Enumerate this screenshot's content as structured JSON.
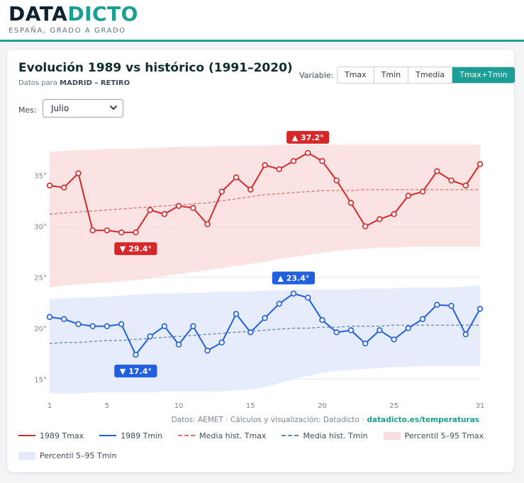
{
  "brand": {
    "name_part1": "DATA",
    "name_part2": "DICTO",
    "tagline": "ESPAÑA, GRADO A GRADO"
  },
  "header": {
    "title": "Evolución 1989 vs histórico (1991–2020)",
    "subtitle_prefix": "Datos para",
    "station": "MADRID – RETIRO"
  },
  "controls": {
    "variable_label": "Variable:",
    "variable_options": [
      "Tmax",
      "Tmin",
      "Tmedia",
      "Tmax+Tmin"
    ],
    "variable_selected": "Tmax+Tmin",
    "month_label": "Mes:",
    "month_value": "Julio"
  },
  "colors": {
    "tmax": "#d62828",
    "tmin": "#1f5fe0",
    "tmax_hist": "#e2706e",
    "tmin_hist": "#5a88b0",
    "tmax_band": "#f9dedd",
    "tmin_band": "#e2e9fa",
    "accent": "#1b9e93"
  },
  "chart_data": {
    "type": "line",
    "x": [
      1,
      2,
      3,
      4,
      5,
      6,
      7,
      8,
      9,
      10,
      11,
      12,
      13,
      14,
      15,
      16,
      17,
      18,
      19,
      20,
      21,
      22,
      23,
      24,
      25,
      26,
      27,
      28,
      29,
      30,
      31
    ],
    "x_ticks": [
      1,
      5,
      10,
      15,
      20,
      25,
      31
    ],
    "y_ticks": [
      15,
      20,
      25,
      30,
      35
    ],
    "ylim": [
      13.5,
      39
    ],
    "grid": "horizontal",
    "y_tick_suffix": "°",
    "series": [
      {
        "name": "1989 Tmax",
        "style": "line-markers",
        "values": [
          34.0,
          33.8,
          35.2,
          29.6,
          29.6,
          29.4,
          29.4,
          31.6,
          31.2,
          32.0,
          31.8,
          30.2,
          33.4,
          34.8,
          33.6,
          36.0,
          35.6,
          36.4,
          37.2,
          36.4,
          34.5,
          32.3,
          30.0,
          30.7,
          31.2,
          33.0,
          33.4,
          35.4,
          34.5,
          34.0,
          36.1
        ]
      },
      {
        "name": "1989 Tmin",
        "style": "line-markers",
        "values": [
          21.1,
          20.9,
          20.4,
          20.2,
          20.2,
          20.4,
          17.4,
          19.2,
          20.2,
          18.4,
          20.2,
          17.8,
          18.6,
          21.4,
          19.6,
          21.0,
          22.4,
          23.4,
          23.0,
          20.8,
          19.6,
          19.8,
          18.5,
          19.8,
          18.9,
          20.0,
          20.9,
          22.3,
          22.2,
          19.4,
          21.9
        ]
      },
      {
        "name": "Media hist. Tmax",
        "style": "dashed",
        "values": [
          31.2,
          31.3,
          31.4,
          31.5,
          31.6,
          31.7,
          31.8,
          31.9,
          32.0,
          32.1,
          32.2,
          32.3,
          32.5,
          32.7,
          32.9,
          33.1,
          33.2,
          33.3,
          33.4,
          33.5,
          33.5,
          33.5,
          33.6,
          33.6,
          33.6,
          33.6,
          33.6,
          33.6,
          33.6,
          33.6,
          33.6
        ]
      },
      {
        "name": "Media hist. Tmin",
        "style": "dashed",
        "values": [
          18.5,
          18.6,
          18.6,
          18.7,
          18.8,
          18.8,
          18.9,
          19.0,
          19.1,
          19.2,
          19.3,
          19.4,
          19.5,
          19.6,
          19.7,
          19.8,
          19.9,
          20.0,
          20.0,
          20.1,
          20.1,
          20.2,
          20.2,
          20.2,
          20.3,
          20.3,
          20.3,
          20.3,
          20.3,
          20.3,
          20.3
        ]
      },
      {
        "name": "Percentil 5–95 Tmax",
        "style": "band",
        "lower": [
          24.0,
          24.2,
          24.3,
          24.4,
          24.5,
          24.6,
          24.7,
          24.9,
          25.1,
          25.3,
          25.5,
          25.7,
          25.9,
          26.1,
          26.3,
          26.5,
          26.8,
          27.0,
          27.2,
          27.4,
          27.6,
          27.7,
          27.8,
          27.9,
          27.9,
          28.0,
          28.0,
          28.0,
          28.0,
          28.0,
          28.0
        ],
        "upper": [
          37.3,
          37.4,
          37.5,
          37.5,
          37.6,
          37.6,
          37.6,
          37.7,
          37.7,
          37.8,
          37.8,
          37.8,
          37.9,
          37.9,
          37.9,
          37.9,
          38.0,
          38.0,
          38.0,
          38.0,
          38.0,
          38.0,
          38.0,
          38.0,
          38.0,
          38.0,
          38.0,
          38.0,
          38.0,
          38.0,
          38.0
        ]
      },
      {
        "name": "Percentil 5–95 Tmin",
        "style": "band",
        "lower": [
          13.6,
          13.6,
          13.6,
          13.7,
          13.7,
          13.7,
          13.7,
          13.7,
          13.8,
          13.8,
          13.8,
          13.8,
          13.8,
          13.9,
          14.0,
          14.2,
          14.6,
          15.0,
          15.3,
          15.6,
          15.8,
          15.9,
          16.0,
          16.1,
          16.2,
          16.2,
          16.3,
          16.3,
          16.3,
          16.3,
          16.3
        ],
        "upper": [
          22.9,
          22.9,
          23.0,
          23.0,
          23.1,
          23.2,
          23.3,
          23.4,
          23.4,
          23.4,
          23.5,
          23.5,
          23.6,
          23.6,
          23.6,
          23.7,
          23.7,
          23.8,
          23.8,
          23.8,
          23.8,
          23.8,
          23.9,
          23.9,
          23.9,
          24.0,
          24.0,
          24.0,
          24.0,
          24.1,
          24.2
        ]
      }
    ],
    "annotations": [
      {
        "label": "▲ 37.2°",
        "series": "1989 Tmax",
        "x": 19,
        "y": 37.2,
        "side": "above"
      },
      {
        "label": "▼ 29.4°",
        "series": "1989 Tmax",
        "x": 7,
        "y": 29.4,
        "side": "below"
      },
      {
        "label": "▲ 23.4°",
        "series": "1989 Tmin",
        "x": 18,
        "y": 23.4,
        "side": "above"
      },
      {
        "label": "▼ 17.4°",
        "series": "1989 Tmin",
        "x": 7,
        "y": 17.4,
        "side": "below"
      }
    ]
  },
  "credits": {
    "text": "Datos: AEMET · Cálculos y visualización: Datadicto ·",
    "link": "datadicto.es/temperaturas"
  },
  "legend": [
    {
      "label": "1989 Tmax",
      "kind": "line",
      "color_key": "tmax"
    },
    {
      "label": "1989 Tmin",
      "kind": "line",
      "color_key": "tmin"
    },
    {
      "label": "Media hist. Tmax",
      "kind": "dash",
      "color_key": "tmax_hist"
    },
    {
      "label": "Media hist. Tmin",
      "kind": "dash",
      "color_key": "tmin_hist"
    },
    {
      "label": "Percentil 5–95 Tmax",
      "kind": "band",
      "color_key": "tmax_band"
    },
    {
      "label": "Percentil 5–95 Tmin",
      "kind": "band",
      "color_key": "tmin_band"
    }
  ]
}
